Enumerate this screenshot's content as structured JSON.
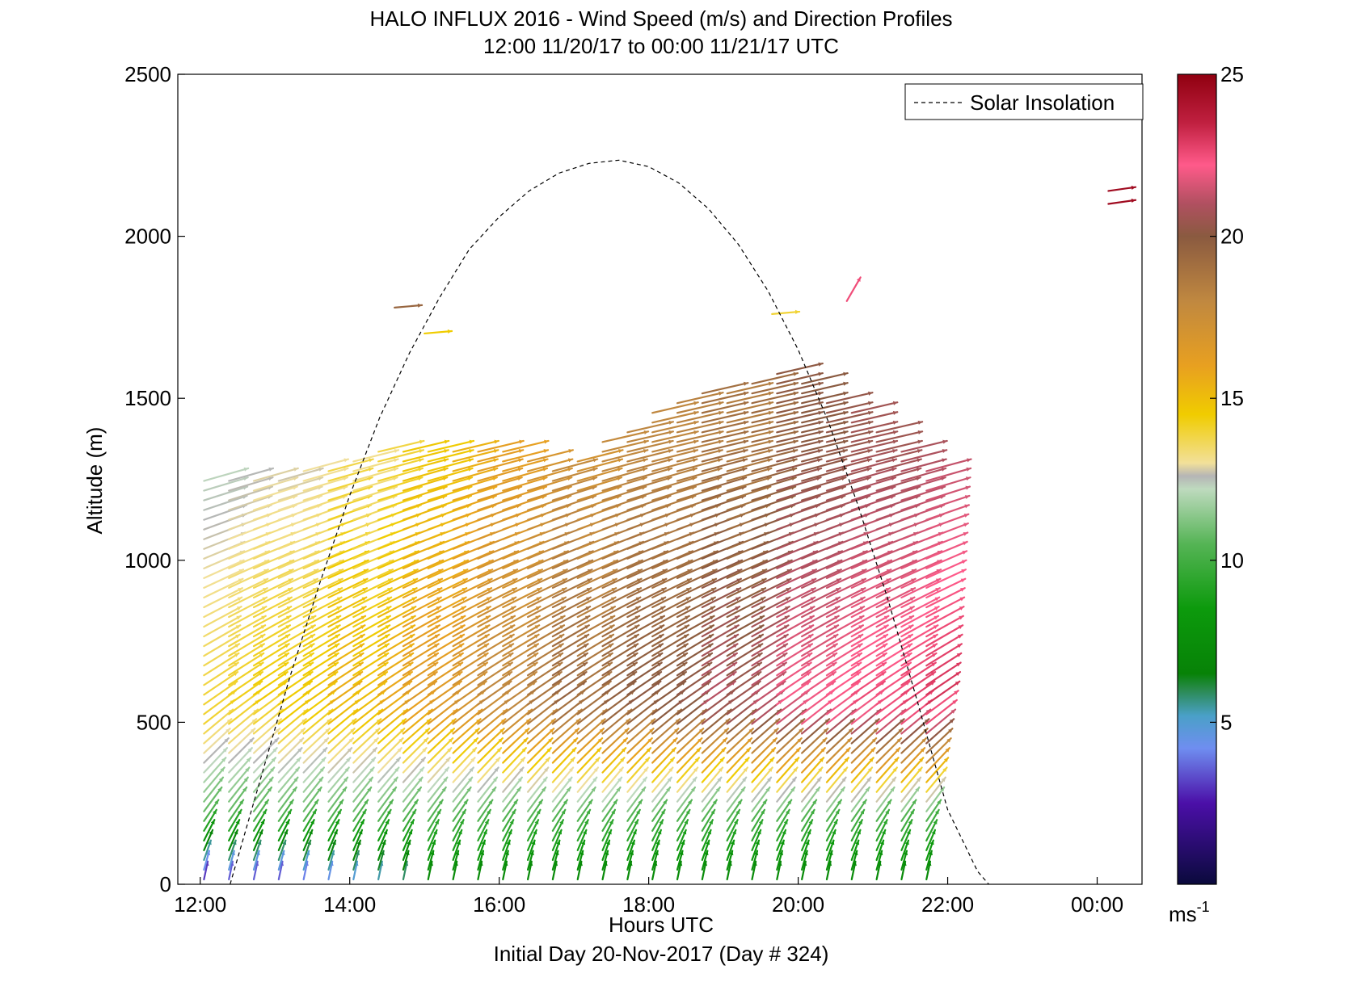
{
  "chart_data": {
    "type": "quiver",
    "title": "HALO INFLUX 2016 - Wind Speed (m/s) and Direction Profiles",
    "subtitle": "12:00 11/20/17 to 00:00 11/21/17  UTC",
    "xlabel": "Hours UTC",
    "footer": "Initial Day 20-Nov-2017 (Day # 324)",
    "ylabel": "Altitude (m)",
    "xlim": [
      11.7,
      24.6
    ],
    "ylim": [
      0,
      2500
    ],
    "xticks": [
      12,
      14,
      16,
      18,
      20,
      22,
      24
    ],
    "xtick_labels": [
      "12:00",
      "14:00",
      "16:00",
      "18:00",
      "20:00",
      "22:00",
      "00:00"
    ],
    "yticks": [
      0,
      500,
      1000,
      1500,
      2000,
      2500
    ],
    "ytick_labels": [
      "0",
      "500",
      "1000",
      "1500",
      "2000",
      "2500"
    ],
    "colorbar": {
      "range": [
        0,
        25
      ],
      "ticks": [
        5,
        10,
        15,
        20,
        25
      ],
      "tick_labels": [
        "5",
        "10",
        "15",
        "20",
        "25"
      ],
      "unit_label": "ms",
      "unit_exponent": "-1",
      "stops": [
        {
          "v": 0,
          "c": "#0a0a3c"
        },
        {
          "v": 2.5,
          "c": "#4b0fa8"
        },
        {
          "v": 4.2,
          "c": "#6f8ef0"
        },
        {
          "v": 5.2,
          "c": "#4aa0c8"
        },
        {
          "v": 6.0,
          "c": "#2a8a50"
        },
        {
          "v": 6.5,
          "c": "#078207"
        },
        {
          "v": 8.5,
          "c": "#0c9a0c"
        },
        {
          "v": 10.5,
          "c": "#55b455"
        },
        {
          "v": 12.2,
          "c": "#bedabe"
        },
        {
          "v": 12.6,
          "c": "#b5b5b5"
        },
        {
          "v": 13.0,
          "c": "#f2e09a"
        },
        {
          "v": 14.5,
          "c": "#f0cc00"
        },
        {
          "v": 16.0,
          "c": "#e8a020"
        },
        {
          "v": 18.0,
          "c": "#c08840"
        },
        {
          "v": 20.0,
          "c": "#8a5a40"
        },
        {
          "v": 21.0,
          "c": "#b05060"
        },
        {
          "v": 22.2,
          "c": "#ff5a8a"
        },
        {
          "v": 23.5,
          "c": "#c02040"
        },
        {
          "v": 25.0,
          "c": "#900010"
        }
      ]
    },
    "legend": {
      "label": "Solar Insolation",
      "style": "dashed",
      "placement": "top-right"
    },
    "solar_insolation_curve": {
      "x_hours": [
        12.4,
        12.8,
        13.2,
        13.6,
        14.0,
        14.4,
        14.8,
        15.2,
        15.6,
        16.0,
        16.4,
        16.8,
        17.2,
        17.6,
        18.0,
        18.4,
        18.8,
        19.2,
        19.6,
        20.0,
        20.4,
        20.8,
        21.2,
        21.6,
        22.0,
        22.4,
        22.55
      ],
      "altitude": [
        0,
        320,
        640,
        930,
        1200,
        1440,
        1640,
        1810,
        1960,
        2060,
        2140,
        2195,
        2225,
        2235,
        2215,
        2165,
        2085,
        1975,
        1830,
        1650,
        1430,
        1170,
        880,
        560,
        230,
        40,
        0
      ]
    },
    "profiles": {
      "start_hour": 12.05,
      "step_hours": 0.3333,
      "count": 30,
      "altitude_step_m": 30,
      "top_altitude_m": [
        1250,
        1250,
        1250,
        1270,
        1290,
        1300,
        1330,
        1350,
        1350,
        1350,
        1350,
        1350,
        1340,
        1310,
        1290,
        1330,
        1380,
        1420,
        1460,
        1500,
        1520,
        1540,
        1560,
        1580,
        1560,
        1500,
        1460,
        1400,
        1350,
        1300
      ],
      "low_level_speed_ms": [
        2.5,
        3,
        3,
        3,
        3.5,
        4,
        4.5,
        5,
        5.5,
        7,
        7,
        7,
        7,
        7,
        7,
        7,
        7,
        7,
        7,
        7,
        7,
        7,
        7,
        7,
        7,
        7,
        7,
        7,
        7,
        7
      ],
      "upper_level_speed_ms": [
        14,
        14,
        14,
        14.5,
        14.5,
        15,
        15,
        15.5,
        16,
        16.5,
        17,
        17.5,
        18,
        18.5,
        19,
        19,
        19.5,
        19.5,
        20,
        20,
        20.5,
        20.5,
        21,
        21.5,
        22,
        22,
        22,
        22.5,
        22.5,
        22.5
      ]
    },
    "isolated_arrows": [
      {
        "x_hour": 24.15,
        "altitude": 2140,
        "speed": 24.5
      },
      {
        "x_hour": 24.15,
        "altitude": 2100,
        "speed": 24.5
      },
      {
        "x_hour": 14.6,
        "altitude": 1780,
        "speed": 19.5
      },
      {
        "x_hour": 15.0,
        "altitude": 1700,
        "speed": 14.5
      },
      {
        "x_hour": 20.65,
        "altitude": 1800,
        "speed": 22.5
      },
      {
        "x_hour": 19.65,
        "altitude": 1760,
        "speed": 14
      }
    ]
  }
}
